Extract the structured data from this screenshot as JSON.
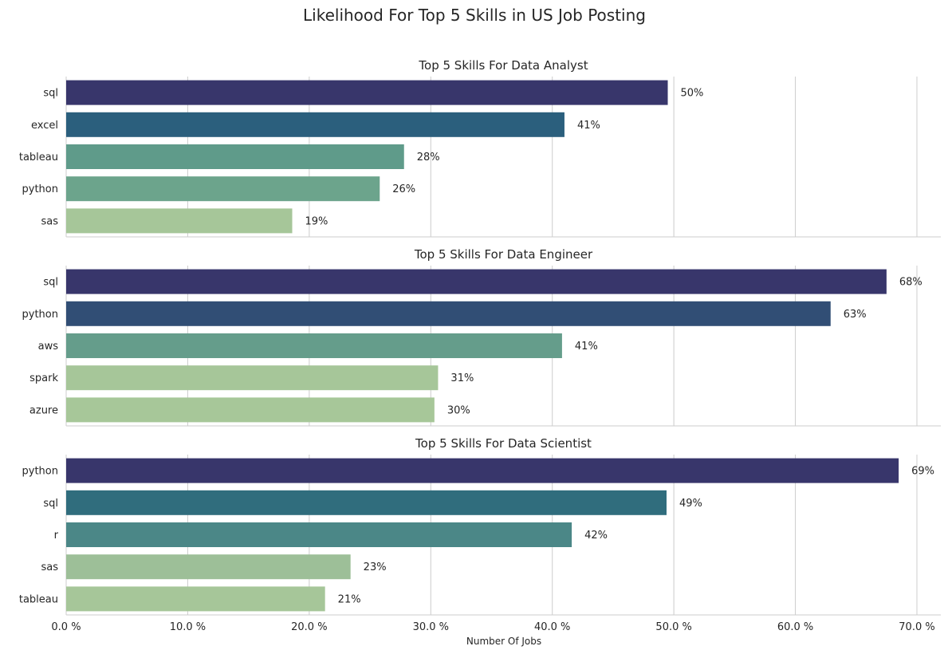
{
  "figure_title": "Likelihood For Top 5 Skills in US Job Posting",
  "x_axis_label": "Number Of Jobs",
  "x_ticks": [
    "0.0 %",
    "10.0 %",
    "20.0 %",
    "30.0 %",
    "40.0 %",
    "50.0 %",
    "60.0 %",
    "70.0 %"
  ],
  "chart_data": [
    {
      "type": "bar",
      "orientation": "horizontal",
      "title": "Top 5 Skills For Data Analyst",
      "categories": [
        "sql",
        "excel",
        "tableau",
        "python",
        "sas"
      ],
      "values": [
        49.5,
        41.0,
        27.8,
        25.8,
        18.6
      ],
      "data_labels": [
        "50%",
        "41%",
        "28%",
        "26%",
        "19%"
      ],
      "colors": [
        "#38366b",
        "#2b5f7d",
        "#5f9b8a",
        "#6ca48c",
        "#a6c699"
      ],
      "xlabel": "",
      "ylabel": "",
      "xlim": [
        0,
        72
      ],
      "grid": "vertical"
    },
    {
      "type": "bar",
      "orientation": "horizontal",
      "title": "Top 5 Skills For Data Engineer",
      "categories": [
        "sql",
        "python",
        "aws",
        "spark",
        "azure"
      ],
      "values": [
        67.5,
        62.9,
        40.8,
        30.6,
        30.3
      ],
      "data_labels": [
        "68%",
        "63%",
        "41%",
        "31%",
        "30%"
      ],
      "colors": [
        "#38366b",
        "#314e75",
        "#659d8b",
        "#a6c699",
        "#a7c799"
      ],
      "xlabel": "",
      "ylabel": "",
      "xlim": [
        0,
        72
      ],
      "grid": "vertical"
    },
    {
      "type": "bar",
      "orientation": "horizontal",
      "title": "Top 5 Skills For Data Scientist",
      "categories": [
        "python",
        "sql",
        "r",
        "sas",
        "tableau"
      ],
      "values": [
        68.5,
        49.4,
        41.6,
        23.4,
        21.3
      ],
      "data_labels": [
        "69%",
        "49%",
        "42%",
        "23%",
        "21%"
      ],
      "colors": [
        "#38366b",
        "#306d7d",
        "#4b8787",
        "#9dbf98",
        "#a6c699"
      ],
      "xlabel": "Number Of Jobs",
      "ylabel": "",
      "xlim": [
        0,
        72
      ],
      "grid": "vertical"
    }
  ]
}
